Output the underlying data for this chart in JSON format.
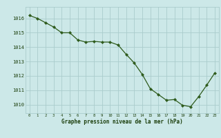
{
  "x": [
    0,
    1,
    2,
    3,
    4,
    5,
    6,
    7,
    8,
    9,
    10,
    11,
    12,
    13,
    14,
    15,
    16,
    17,
    18,
    19,
    20,
    21,
    22,
    23
  ],
  "y": [
    1016.2,
    1016.0,
    1015.7,
    1015.4,
    1015.0,
    1015.0,
    1014.5,
    1014.35,
    1014.4,
    1014.35,
    1014.35,
    1014.15,
    1013.5,
    1012.9,
    1012.1,
    1011.1,
    1010.7,
    1010.3,
    1010.35,
    1009.95,
    1009.85,
    1010.55,
    1011.35,
    1012.2
  ],
  "line_color": "#2d5a1b",
  "marker_color": "#2d5a1b",
  "bg_color": "#cce8e8",
  "grid_color": "#aacccc",
  "xlabel": "Graphe pression niveau de la mer (hPa)",
  "xlabel_color": "#1a3d0a",
  "xtick_color": "#1a3d0a",
  "ytick_color": "#1a3d0a",
  "ylim_min": 1009.4,
  "ylim_max": 1016.8,
  "xlim_min": -0.5,
  "xlim_max": 23.5,
  "yticks": [
    1010,
    1011,
    1012,
    1013,
    1014,
    1015,
    1016
  ],
  "xticks": [
    0,
    1,
    2,
    3,
    4,
    5,
    6,
    7,
    8,
    9,
    10,
    11,
    12,
    13,
    14,
    15,
    16,
    17,
    18,
    19,
    20,
    21,
    22,
    23
  ]
}
